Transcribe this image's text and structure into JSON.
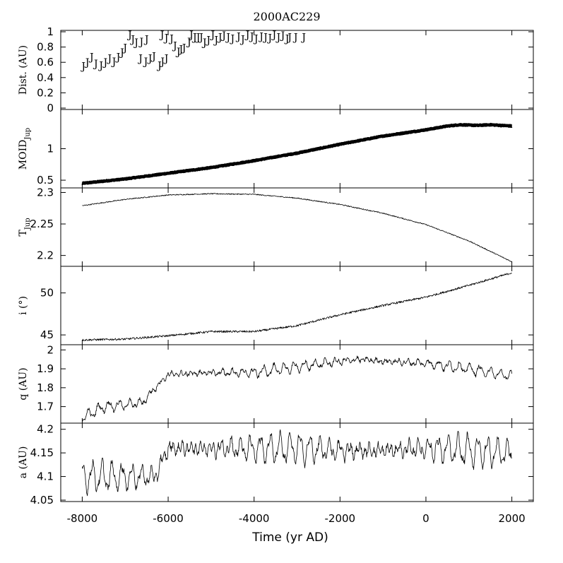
{
  "chart_data": {
    "type": "line",
    "title": "2000AC229",
    "xlabel": "Time (yr AD)",
    "xlim": [
      -8500,
      2500
    ],
    "xticks": [
      -8000,
      -6000,
      -4000,
      -2000,
      0,
      2000
    ],
    "xtick_labels": [
      "-8000",
      "-6000",
      "-4000",
      "-2000",
      "0",
      "2000"
    ],
    "panels": [
      {
        "id": "dist",
        "ylabel": "Dist. (AU)",
        "ylim": [
          0,
          1
        ],
        "yticks": [
          0,
          0.2,
          0.4,
          0.6,
          0.8,
          1
        ],
        "ytick_labels": [
          "0",
          "0.2",
          "0.4",
          "0.6",
          "0.8",
          "1"
        ],
        "style": "marker",
        "marker_text": "J",
        "points": [
          [
            -7970,
            0.57
          ],
          [
            -7880,
            0.62
          ],
          [
            -7780,
            0.69
          ],
          [
            -7680,
            0.6
          ],
          [
            -7560,
            0.58
          ],
          [
            -7460,
            0.62
          ],
          [
            -7360,
            0.67
          ],
          [
            -7260,
            0.63
          ],
          [
            -7160,
            0.69
          ],
          [
            -7070,
            0.75
          ],
          [
            -7000,
            0.81
          ],
          [
            -6890,
            0.98
          ],
          [
            -6820,
            0.92
          ],
          [
            -6740,
            0.88
          ],
          [
            -6620,
            0.89
          ],
          [
            -6500,
            0.92
          ],
          [
            -6640,
            0.67
          ],
          [
            -6520,
            0.63
          ],
          [
            -6420,
            0.67
          ],
          [
            -6330,
            0.7
          ],
          [
            -6200,
            0.58
          ],
          [
            -6130,
            0.63
          ],
          [
            -6040,
            0.67
          ],
          [
            -6140,
            0.98
          ],
          [
            -6040,
            0.94
          ],
          [
            -5920,
            0.93
          ],
          [
            -5840,
            0.84
          ],
          [
            -5760,
            0.76
          ],
          [
            -5700,
            0.79
          ],
          [
            -5630,
            0.81
          ],
          [
            -5510,
            0.89
          ],
          [
            -5460,
            0.98
          ],
          [
            -5380,
            0.95
          ],
          [
            -5300,
            0.95
          ],
          [
            -5230,
            0.95
          ],
          [
            -5150,
            0.88
          ],
          [
            -5060,
            0.91
          ],
          [
            -4960,
            0.98
          ],
          [
            -4880,
            0.91
          ],
          [
            -4790,
            0.95
          ],
          [
            -4700,
            0.97
          ],
          [
            -4600,
            0.95
          ],
          [
            -4500,
            0.93
          ],
          [
            -4360,
            0.96
          ],
          [
            -4260,
            0.92
          ],
          [
            -4150,
            0.98
          ],
          [
            -4050,
            0.96
          ],
          [
            -3950,
            0.93
          ],
          [
            -3830,
            0.96
          ],
          [
            -3730,
            0.95
          ],
          [
            -3630,
            0.94
          ],
          [
            -3530,
            0.98
          ],
          [
            -3430,
            0.95
          ],
          [
            -3330,
            0.97
          ],
          [
            -3230,
            0.93
          ],
          [
            -3170,
            0.95
          ],
          [
            -3030,
            0.95
          ],
          [
            -2840,
            0.95
          ]
        ]
      },
      {
        "id": "moid",
        "ylabel": "MOID",
        "ylabel_sub": "Jup",
        "ylim": [
          0.4,
          1.6
        ],
        "yticks": [
          0.5,
          1
        ],
        "ytick_labels": [
          "0.5",
          "1"
        ],
        "style": "thick",
        "points": [
          [
            -8000,
            0.45
          ],
          [
            -7000,
            0.52
          ],
          [
            -6000,
            0.61
          ],
          [
            -5000,
            0.7
          ],
          [
            -4000,
            0.81
          ],
          [
            -3000,
            0.93
          ],
          [
            -2000,
            1.07
          ],
          [
            -1000,
            1.2
          ],
          [
            0,
            1.3
          ],
          [
            500,
            1.36
          ],
          [
            800,
            1.38
          ],
          [
            1200,
            1.37
          ],
          [
            1500,
            1.38
          ],
          [
            2000,
            1.36
          ]
        ],
        "noise": 0.006
      },
      {
        "id": "tjup",
        "ylabel": "T",
        "ylabel_sub": "Jup",
        "ylim": [
          2.185,
          2.305
        ],
        "yticks": [
          2.2,
          2.25,
          2.3
        ],
        "ytick_labels": [
          "2.2",
          "2.25",
          "2.3"
        ],
        "style": "thin",
        "points": [
          [
            -8000,
            2.279
          ],
          [
            -7000,
            2.289
          ],
          [
            -6000,
            2.296
          ],
          [
            -5000,
            2.298
          ],
          [
            -4000,
            2.297
          ],
          [
            -3000,
            2.291
          ],
          [
            -2000,
            2.281
          ],
          [
            -1000,
            2.267
          ],
          [
            0,
            2.249
          ],
          [
            1000,
            2.223
          ],
          [
            2000,
            2.19
          ]
        ],
        "noise": 0.0008
      },
      {
        "id": "incl",
        "ylabel": "i (°)",
        "ylim": [
          44,
          53
        ],
        "yticks": [
          45,
          50
        ],
        "ytick_labels": [
          "45",
          "50"
        ],
        "style": "thin",
        "points": [
          [
            -8000,
            44.4
          ],
          [
            -7000,
            44.5
          ],
          [
            -6000,
            44.9
          ],
          [
            -5000,
            45.4
          ],
          [
            -4000,
            45.4
          ],
          [
            -3000,
            46.1
          ],
          [
            -2000,
            47.4
          ],
          [
            -1000,
            48.5
          ],
          [
            0,
            49.5
          ],
          [
            1000,
            50.9
          ],
          [
            2000,
            52.4
          ]
        ],
        "noise": 0.12
      },
      {
        "id": "q",
        "ylabel": "q (AU)",
        "ylim": [
          1.62,
          2.02
        ],
        "yticks": [
          1.7,
          1.8,
          1.9,
          2
        ],
        "ytick_labels": [
          "1.7",
          "1.8",
          "1.9",
          "2"
        ],
        "style": "thin",
        "points": [
          [
            -8000,
            1.64
          ],
          [
            -7500,
            1.7
          ],
          [
            -7000,
            1.71
          ],
          [
            -6600,
            1.72
          ],
          [
            -6300,
            1.8
          ],
          [
            -6000,
            1.87
          ],
          [
            -5000,
            1.88
          ],
          [
            -4000,
            1.88
          ],
          [
            -3000,
            1.91
          ],
          [
            -2000,
            1.94
          ],
          [
            -1500,
            1.95
          ],
          [
            -1000,
            1.94
          ],
          [
            0,
            1.93
          ],
          [
            1000,
            1.9
          ],
          [
            2000,
            1.86
          ]
        ],
        "osc_amp": 0.025,
        "osc_period": 240,
        "noise": 0.008
      },
      {
        "id": "a",
        "ylabel": "a (AU)",
        "ylim": [
          4.05,
          4.21
        ],
        "yticks": [
          4.05,
          4.1,
          4.15,
          4.2
        ],
        "ytick_labels": [
          "4.05",
          "4.1",
          "4.15",
          "4.2"
        ],
        "style": "thin",
        "points": [
          [
            -8000,
            4.1
          ],
          [
            -7000,
            4.1
          ],
          [
            -6300,
            4.1
          ],
          [
            -6000,
            4.16
          ],
          [
            -5000,
            4.16
          ],
          [
            -4000,
            4.16
          ],
          [
            -3000,
            4.16
          ],
          [
            -2000,
            4.155
          ],
          [
            -1000,
            4.155
          ],
          [
            0,
            4.16
          ],
          [
            1000,
            4.155
          ],
          [
            2000,
            4.15
          ]
        ],
        "osc_amp": 0.028,
        "osc_period": 230,
        "noise": 0.006
      }
    ]
  }
}
